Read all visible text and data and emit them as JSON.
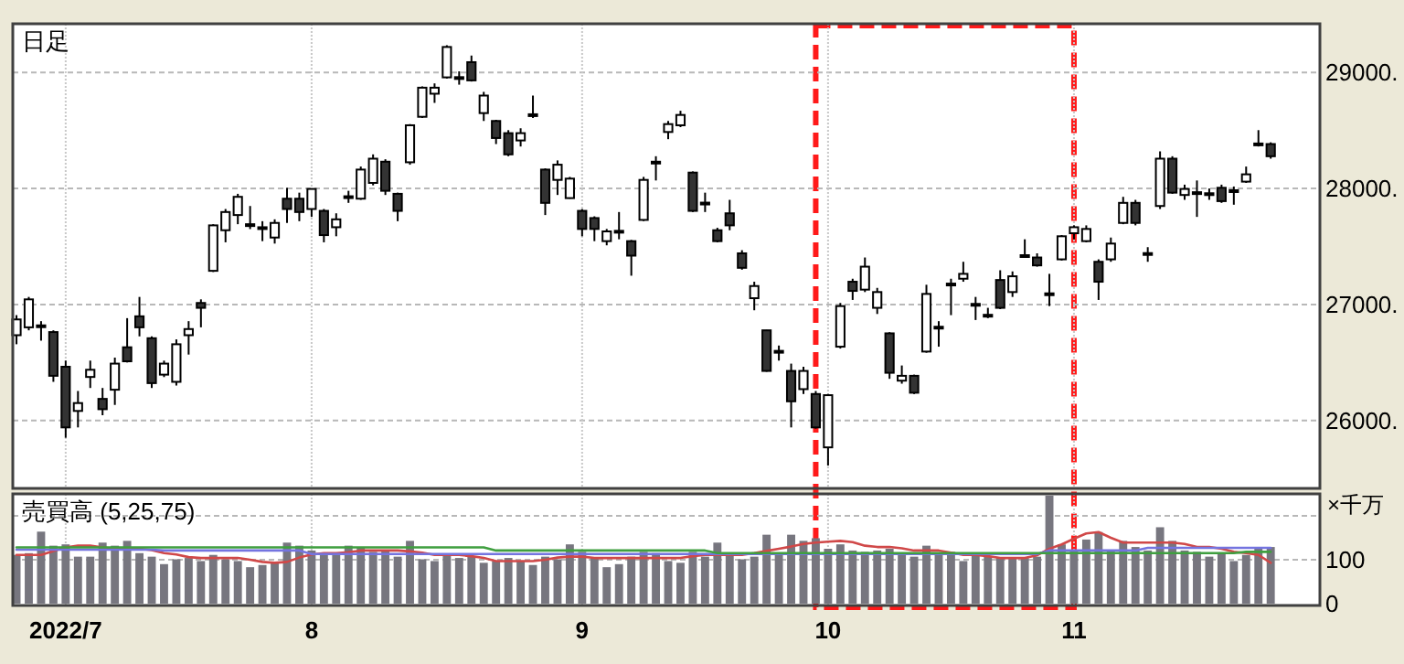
{
  "chart_data": [
    {
      "type": "candlestick",
      "title": "日足",
      "grid": true,
      "tick_labels": "y",
      "ylim": [
        25430,
        29420
      ],
      "yticks": [
        {
          "value": 26000,
          "label": "26000."
        },
        {
          "value": 27000,
          "label": "27000."
        },
        {
          "value": 28000,
          "label": "28000."
        },
        {
          "value": 29000,
          "label": "29000."
        }
      ],
      "categories": [
        null,
        null,
        null,
        null,
        "2022/7",
        null,
        null,
        null,
        null,
        null,
        null,
        null,
        null,
        null,
        null,
        null,
        null,
        null,
        null,
        null,
        null,
        null,
        null,
        null,
        "8",
        null,
        null,
        null,
        null,
        null,
        null,
        null,
        null,
        null,
        null,
        null,
        null,
        null,
        null,
        null,
        null,
        null,
        null,
        null,
        null,
        null,
        "9",
        null,
        null,
        null,
        null,
        null,
        null,
        null,
        null,
        null,
        null,
        null,
        null,
        null,
        null,
        null,
        null,
        null,
        null,
        null,
        "10",
        null,
        null,
        null,
        null,
        null,
        null,
        null,
        null,
        null,
        null,
        null,
        null,
        null,
        null,
        null,
        null,
        null,
        null,
        null,
        "11",
        null,
        null,
        null,
        null,
        null,
        null,
        null,
        null,
        null,
        null,
        null,
        null,
        null,
        null,
        null,
        null
      ],
      "ohlc": [
        [
          26735,
          26908,
          26657,
          26871
        ],
        [
          26803,
          27065,
          26777,
          27044
        ],
        [
          26820,
          26856,
          26688,
          26810
        ],
        [
          26762,
          26777,
          26333,
          26385
        ],
        [
          26463,
          26516,
          25851,
          25940
        ],
        [
          26082,
          26254,
          25940,
          26150
        ],
        [
          26375,
          26516,
          26280,
          26437
        ],
        [
          26186,
          26280,
          26045,
          26097
        ],
        [
          26265,
          26542,
          26134,
          26490
        ],
        [
          26631,
          26882,
          26500,
          26510
        ],
        [
          26898,
          27065,
          26725,
          26803
        ],
        [
          26709,
          26725,
          26280,
          26322
        ],
        [
          26395,
          26516,
          26374,
          26490
        ],
        [
          26333,
          26699,
          26301,
          26657
        ],
        [
          26735,
          26856,
          26568,
          26788
        ],
        [
          27013,
          27044,
          26803,
          26971
        ],
        [
          27290,
          27692,
          27280,
          27682
        ],
        [
          27640,
          27823,
          27536,
          27797
        ],
        [
          27771,
          27954,
          27692,
          27928
        ],
        [
          27692,
          27849,
          27650,
          27682
        ],
        [
          27666,
          27718,
          27546,
          27660
        ],
        [
          27577,
          27734,
          27525,
          27703
        ],
        [
          27912,
          28006,
          27703,
          27823
        ],
        [
          27912,
          27964,
          27718,
          27797
        ],
        [
          27823,
          28000,
          27755,
          27996
        ],
        [
          27807,
          27823,
          27536,
          27598
        ],
        [
          27666,
          27786,
          27588,
          27734
        ],
        [
          27933,
          27980,
          27876,
          27928
        ],
        [
          27912,
          28189,
          27902,
          28163
        ],
        [
          28048,
          28294,
          28027,
          28257
        ],
        [
          28231,
          28252,
          27944,
          27980
        ],
        [
          27954,
          27964,
          27718,
          27807
        ],
        [
          28226,
          28555,
          28205,
          28545
        ],
        [
          28618,
          28880,
          28608,
          28869
        ],
        [
          28817,
          28906,
          28738,
          28869
        ],
        [
          28958,
          29235,
          28948,
          29220
        ],
        [
          28960,
          29010,
          28895,
          28955
        ],
        [
          29089,
          29146,
          28922,
          28932
        ],
        [
          28650,
          28833,
          28582,
          28801
        ],
        [
          28582,
          28592,
          28383,
          28435
        ],
        [
          28477,
          28503,
          28278,
          28294
        ],
        [
          28414,
          28519,
          28362,
          28477
        ],
        [
          28640,
          28801,
          28608,
          28634
        ],
        [
          28163,
          28173,
          27771,
          27876
        ],
        [
          28074,
          28242,
          27944,
          28205
        ],
        [
          27917,
          28100,
          27912,
          28085
        ],
        [
          27807,
          27823,
          27588,
          27651
        ],
        [
          27745,
          27760,
          27546,
          27651
        ],
        [
          27546,
          27651,
          27510,
          27630
        ],
        [
          27635,
          27797,
          27562,
          27625
        ],
        [
          27546,
          27556,
          27248,
          27421
        ],
        [
          27729,
          28100,
          27719,
          28074
        ],
        [
          28231,
          28278,
          28069,
          28226
        ],
        [
          28487,
          28582,
          28425,
          28555
        ],
        [
          28545,
          28670,
          28529,
          28634
        ],
        [
          28137,
          28147,
          27797,
          27807
        ],
        [
          27878,
          27964,
          27797,
          27870
        ],
        [
          27640,
          27661,
          27536,
          27546
        ],
        [
          27786,
          27902,
          27640,
          27682
        ],
        [
          27441,
          27468,
          27300,
          27316
        ],
        [
          27054,
          27196,
          26950,
          27159
        ],
        [
          26777,
          26780,
          26420,
          26427
        ],
        [
          26600,
          26646,
          26516,
          26594
        ],
        [
          26427,
          26490,
          25940,
          26165
        ],
        [
          26270,
          26463,
          26228,
          26427
        ],
        [
          26228,
          26254,
          25930,
          25940
        ],
        [
          25768,
          26228,
          25611,
          26218
        ],
        [
          26636,
          27013,
          26620,
          26986
        ],
        [
          27196,
          27222,
          27039,
          27117
        ],
        [
          27128,
          27405,
          27107,
          27326
        ],
        [
          26971,
          27143,
          26918,
          27107
        ],
        [
          26751,
          26761,
          26359,
          26411
        ],
        [
          26343,
          26474,
          26317,
          26385
        ],
        [
          26385,
          26395,
          26228,
          26239
        ],
        [
          26594,
          27170,
          26584,
          27091
        ],
        [
          26808,
          26856,
          26636,
          26803
        ],
        [
          27180,
          27222,
          26908,
          27175
        ],
        [
          27222,
          27368,
          27196,
          27264
        ],
        [
          27005,
          27065,
          26866,
          27000
        ],
        [
          26911,
          26971,
          26882,
          26908
        ],
        [
          27211,
          27295,
          26960,
          26971
        ],
        [
          27107,
          27285,
          27065,
          27243
        ],
        [
          27425,
          27562,
          27405,
          27420
        ],
        [
          27405,
          27441,
          27326,
          27337
        ],
        [
          27096,
          27264,
          26986,
          27091
        ],
        [
          27389,
          27598,
          27379,
          27588
        ],
        [
          27614,
          27682,
          27562,
          27666
        ],
        [
          27546,
          27682,
          27536,
          27651
        ],
        [
          27368,
          27389,
          27039,
          27196
        ],
        [
          27389,
          27577,
          27368,
          27525
        ],
        [
          27703,
          27928,
          27692,
          27876
        ],
        [
          27876,
          27902,
          27682,
          27703
        ],
        [
          27443,
          27494,
          27368,
          27438
        ],
        [
          27849,
          28320,
          27823,
          28257
        ],
        [
          28257,
          28278,
          27954,
          27964
        ],
        [
          27944,
          28033,
          27902,
          27996
        ],
        [
          27968,
          28069,
          27755,
          27960
        ],
        [
          27959,
          28000,
          27902,
          27954
        ],
        [
          28006,
          28033,
          27876,
          27891
        ],
        [
          27985,
          28017,
          27860,
          27980
        ],
        [
          28059,
          28189,
          28048,
          28122
        ],
        [
          28388,
          28503,
          28362,
          28383
        ],
        [
          28383,
          28398,
          28257,
          28278
        ]
      ]
    },
    {
      "type": "bar",
      "title": "売買高 (5,25,75)",
      "ylabel": "×千万",
      "grid": true,
      "ylim": [
        0,
        250
      ],
      "yticks": [
        0,
        100,
        {
          "value": 200,
          "label": null
        }
      ],
      "categories": [
        null,
        null,
        null,
        null,
        "2022/7",
        null,
        null,
        null,
        null,
        null,
        null,
        null,
        null,
        null,
        null,
        null,
        null,
        null,
        null,
        null,
        null,
        null,
        null,
        null,
        "8",
        null,
        null,
        null,
        null,
        null,
        null,
        null,
        null,
        null,
        null,
        null,
        null,
        null,
        null,
        null,
        null,
        null,
        null,
        null,
        null,
        null,
        "9",
        null,
        null,
        null,
        null,
        null,
        null,
        null,
        null,
        null,
        null,
        null,
        null,
        null,
        null,
        null,
        null,
        null,
        null,
        null,
        "10",
        null,
        null,
        null,
        null,
        null,
        null,
        null,
        null,
        null,
        null,
        null,
        null,
        null,
        null,
        null,
        null,
        null,
        null,
        null,
        "11",
        null,
        null,
        null,
        null,
        null,
        null,
        null,
        null,
        null,
        null,
        null,
        null,
        null,
        null,
        null,
        null
      ],
      "series": [
        {
          "color": "#77767f",
          "values": [
            111,
            115,
            164,
            132,
            135,
            107,
            107,
            139,
            132,
            143,
            115,
            107,
            90,
            101,
            104,
            97,
            111,
            101,
            97,
            83,
            88,
            93,
            139,
            132,
            121,
            115,
            115,
            132,
            129,
            118,
            121,
            107,
            143,
            101,
            97,
            111,
            104,
            107,
            93,
            97,
            104,
            97,
            88,
            107,
            101,
            135,
            118,
            104,
            83,
            90,
            107,
            118,
            115,
            97,
            93,
            118,
            107,
            139,
            111,
            101,
            107,
            157,
            115,
            157,
            143,
            149,
            125,
            135,
            121,
            118,
            121,
            125,
            115,
            107,
            132,
            111,
            118,
            97,
            111,
            107,
            104,
            104,
            104,
            107,
            246,
            135,
            121,
            146,
            163,
            121,
            143,
            129,
            121,
            174,
            143,
            121,
            118,
            107,
            115,
            97,
            111,
            129,
            129
          ]
        },
        {
          "type": "line",
          "color": "#d04848",
          "values": [
            111,
            111,
            111,
            120,
            128,
            132,
            132,
            128,
            125,
            125,
            125,
            122,
            115,
            112,
            106,
            104,
            104,
            104,
            104,
            100,
            95,
            93,
            95,
            105,
            112,
            115,
            115,
            117,
            121,
            121,
            121,
            121,
            119,
            116,
            111,
            111,
            111,
            108,
            104,
            97,
            97,
            97,
            97,
            100,
            105,
            107,
            107,
            104,
            104,
            104,
            104,
            104,
            104,
            104,
            104,
            108,
            111,
            111,
            111,
            111,
            115,
            120,
            125,
            130,
            136,
            139,
            141,
            143,
            140,
            132,
            129,
            129,
            126,
            121,
            121,
            121,
            116,
            111,
            111,
            108,
            104,
            104,
            104,
            110,
            125,
            135,
            148,
            160,
            163,
            150,
            139,
            139,
            139,
            139,
            139,
            136,
            129,
            129,
            125,
            118,
            115,
            111,
            93
          ]
        },
        {
          "type": "line",
          "color": "#7474e0",
          "values": [
            123,
            123,
            123,
            123,
            123,
            123,
            123,
            123,
            123,
            123,
            123,
            123,
            121,
            121,
            121,
            121,
            121,
            121,
            121,
            121,
            121,
            121,
            121,
            121,
            113,
            113,
            113,
            113,
            113,
            113,
            113,
            113,
            113,
            113,
            113,
            113,
            113,
            113,
            113,
            113,
            113,
            113,
            113,
            113,
            113,
            113,
            113,
            113,
            113,
            113,
            113,
            113,
            113,
            113,
            113,
            113,
            113,
            113,
            113,
            113,
            113,
            113,
            113,
            113,
            113,
            113,
            113,
            113,
            113,
            113,
            113,
            113,
            113,
            113,
            113,
            113,
            113,
            113,
            113,
            113,
            113,
            113,
            113,
            113,
            121,
            121,
            121,
            121,
            121,
            121,
            121,
            121,
            127,
            127,
            127,
            127,
            127,
            127,
            127,
            127,
            127,
            127,
            127
          ]
        },
        {
          "type": "line",
          "color": "#3f9f3f",
          "values": [
            128,
            128,
            128,
            128,
            128,
            128,
            128,
            128,
            128,
            128,
            128,
            128,
            128,
            128,
            128,
            128,
            128,
            128,
            128,
            128,
            128,
            128,
            128,
            128,
            128,
            128,
            128,
            128,
            128,
            128,
            128,
            128,
            128,
            128,
            128,
            128,
            128,
            128,
            128,
            121,
            121,
            121,
            121,
            121,
            121,
            121,
            121,
            121,
            121,
            121,
            121,
            121,
            121,
            121,
            121,
            121,
            121,
            115,
            115,
            115,
            115,
            115,
            115,
            115,
            115,
            115,
            115,
            115,
            115,
            115,
            115,
            115,
            115,
            115,
            115,
            115,
            115,
            115,
            115,
            115,
            115,
            115,
            115,
            115,
            115,
            115,
            115,
            115,
            115,
            115,
            115,
            115,
            115,
            115,
            115,
            115,
            115,
            115,
            115,
            115,
            118,
            118,
            118
          ]
        }
      ]
    }
  ]
}
